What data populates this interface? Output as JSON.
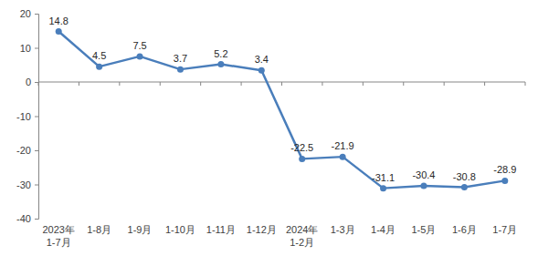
{
  "chart_data": {
    "type": "line",
    "categories": [
      "2023年\n1-7月",
      "1-8月",
      "1-9月",
      "1-10月",
      "1-11月",
      "1-12月",
      "2024年\n1-2月",
      "1-3月",
      "1-4月",
      "1-5月",
      "1-6月",
      "1-7月"
    ],
    "values": [
      14.8,
      4.5,
      7.5,
      3.7,
      5.2,
      3.4,
      -22.5,
      -21.9,
      -31.1,
      -30.4,
      -30.8,
      -28.9
    ],
    "color": "#4a7ebb",
    "marker": "circle",
    "ylim": [
      -40,
      20
    ],
    "yticks": [
      -40,
      -30,
      -20,
      -10,
      0,
      10,
      20
    ],
    "grid": false,
    "data_labels": true
  }
}
